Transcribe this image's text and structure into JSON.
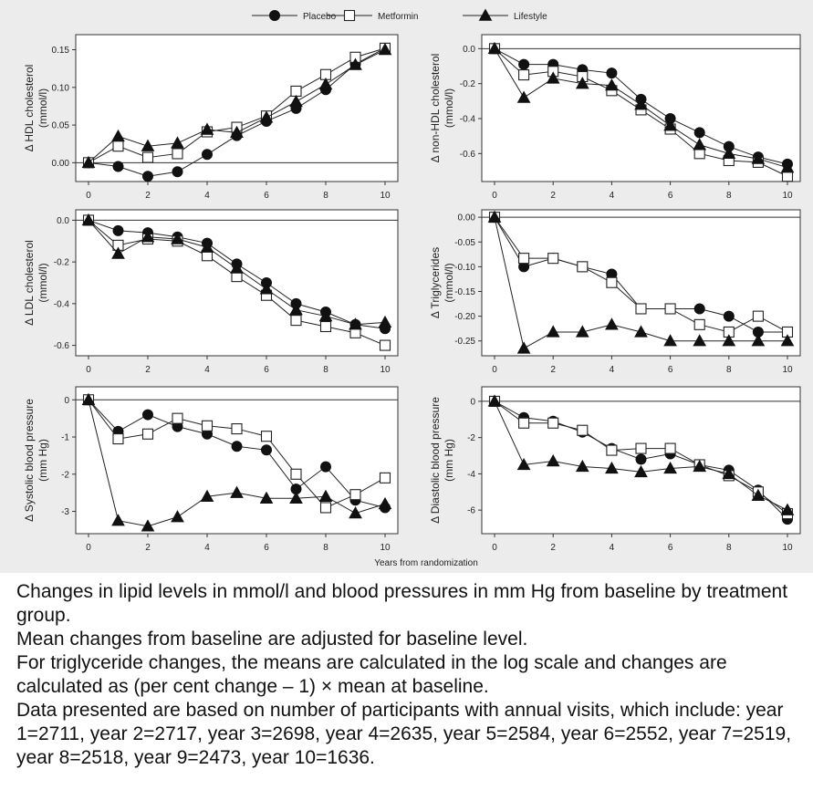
{
  "legend": {
    "entries": [
      {
        "name": "Placebo",
        "marker": "circle"
      },
      {
        "name": "Metformin",
        "marker": "square"
      },
      {
        "name": "Lifestyle",
        "marker": "triangle"
      }
    ]
  },
  "xlabel": "Years from randomization",
  "chart_data": [
    {
      "type": "line",
      "ylabel": [
        "Δ HDL cholesterol",
        "(mmol/l)"
      ],
      "x": [
        0,
        1,
        2,
        3,
        4,
        5,
        6,
        7,
        8,
        9,
        10
      ],
      "xticks": [
        0,
        2,
        4,
        6,
        8,
        10
      ],
      "yticks": [
        0.0,
        0.05,
        0.1,
        0.15
      ],
      "ytick_labels": [
        "0.00",
        "0.05",
        "0.10",
        "0.15"
      ],
      "ylim": [
        -0.025,
        0.17
      ],
      "series": [
        {
          "name": "Placebo",
          "marker": "circle",
          "values": [
            0.0,
            -0.005,
            -0.018,
            -0.012,
            0.011,
            0.036,
            0.055,
            0.072,
            0.097,
            0.131,
            0.152
          ]
        },
        {
          "name": "Metformin",
          "marker": "square",
          "values": [
            0.0,
            0.022,
            0.007,
            0.012,
            0.041,
            0.047,
            0.062,
            0.095,
            0.117,
            0.14,
            0.152
          ]
        },
        {
          "name": "Lifestyle",
          "marker": "triangle",
          "values": [
            0.0,
            0.035,
            0.022,
            0.026,
            0.044,
            0.04,
            0.06,
            0.081,
            0.104,
            0.13,
            0.15
          ]
        }
      ]
    },
    {
      "type": "line",
      "ylabel": [
        "Δ non-HDL cholesterol",
        "(mmol/l)"
      ],
      "x": [
        0,
        1,
        2,
        3,
        4,
        5,
        6,
        7,
        8,
        9,
        10
      ],
      "xticks": [
        0,
        2,
        4,
        6,
        8,
        10
      ],
      "yticks": [
        0.0,
        -0.2,
        -0.4,
        -0.6
      ],
      "ytick_labels": [
        "0.0",
        "-0.2",
        "-0.4",
        "-0.6"
      ],
      "ylim": [
        -0.76,
        0.08
      ],
      "series": [
        {
          "name": "Placebo",
          "marker": "circle",
          "values": [
            0.0,
            -0.09,
            -0.09,
            -0.12,
            -0.14,
            -0.29,
            -0.4,
            -0.48,
            -0.56,
            -0.62,
            -0.66
          ]
        },
        {
          "name": "Metformin",
          "marker": "square",
          "values": [
            0.0,
            -0.15,
            -0.13,
            -0.16,
            -0.24,
            -0.35,
            -0.46,
            -0.6,
            -0.64,
            -0.65,
            -0.73
          ]
        },
        {
          "name": "Lifestyle",
          "marker": "triangle",
          "values": [
            0.0,
            -0.28,
            -0.17,
            -0.2,
            -0.21,
            -0.32,
            -0.44,
            -0.55,
            -0.6,
            -0.63,
            -0.68
          ]
        }
      ]
    },
    {
      "type": "line",
      "ylabel": [
        "Δ LDL cholesterol",
        "(mmol/l)"
      ],
      "x": [
        0,
        1,
        2,
        3,
        4,
        5,
        6,
        7,
        8,
        9,
        10
      ],
      "xticks": [
        0,
        2,
        4,
        6,
        8,
        10
      ],
      "yticks": [
        0.0,
        -0.2,
        -0.4,
        -0.6
      ],
      "ytick_labels": [
        "0.0",
        "-0.2",
        "-0.4",
        "-0.6"
      ],
      "ylim": [
        -0.65,
        0.05
      ],
      "series": [
        {
          "name": "Placebo",
          "marker": "circle",
          "values": [
            0.0,
            -0.05,
            -0.06,
            -0.08,
            -0.11,
            -0.21,
            -0.3,
            -0.4,
            -0.44,
            -0.5,
            -0.52
          ]
        },
        {
          "name": "Metformin",
          "marker": "square",
          "values": [
            0.0,
            -0.12,
            -0.09,
            -0.1,
            -0.17,
            -0.27,
            -0.36,
            -0.48,
            -0.51,
            -0.54,
            -0.6
          ]
        },
        {
          "name": "Lifestyle",
          "marker": "triangle",
          "values": [
            0.0,
            -0.16,
            -0.08,
            -0.09,
            -0.13,
            -0.23,
            -0.33,
            -0.43,
            -0.46,
            -0.5,
            -0.49
          ]
        }
      ]
    },
    {
      "type": "line",
      "ylabel": [
        "Δ Triglycerides",
        "(mmol/l)"
      ],
      "x": [
        0,
        1,
        2,
        3,
        4,
        5,
        6,
        7,
        8,
        9,
        10
      ],
      "xticks": [
        0,
        2,
        4,
        6,
        8,
        10
      ],
      "yticks": [
        0.0,
        -0.05,
        -0.1,
        -0.15,
        -0.2,
        -0.25
      ],
      "ytick_labels": [
        "0.00",
        "-0.05",
        "-0.10",
        "-0.15",
        "-0.20",
        "-0.25"
      ],
      "ylim": [
        -0.28,
        0.015
      ],
      "series": [
        {
          "name": "Placebo",
          "marker": "circle",
          "values": [
            0.0,
            -0.1,
            -0.083,
            -0.1,
            -0.115,
            -0.185,
            -0.185,
            -0.185,
            -0.2,
            -0.232,
            -0.232
          ]
        },
        {
          "name": "Metformin",
          "marker": "square",
          "values": [
            0.0,
            -0.083,
            -0.083,
            -0.1,
            -0.132,
            -0.185,
            -0.185,
            -0.217,
            -0.232,
            -0.2,
            -0.232
          ]
        },
        {
          "name": "Lifestyle",
          "marker": "triangle",
          "values": [
            0.0,
            -0.265,
            -0.232,
            -0.232,
            -0.217,
            -0.232,
            -0.25,
            -0.25,
            -0.25,
            -0.25,
            -0.25
          ]
        }
      ]
    },
    {
      "type": "line",
      "ylabel": [
        "Δ Systolic blood pressure",
        "(mm Hg)"
      ],
      "x": [
        0,
        1,
        2,
        3,
        4,
        5,
        6,
        7,
        8,
        9,
        10
      ],
      "xticks": [
        0,
        2,
        4,
        6,
        8,
        10
      ],
      "yticks": [
        0,
        -1,
        -2,
        -3
      ],
      "ytick_labels": [
        "0",
        "-1",
        "-2",
        "-3"
      ],
      "ylim": [
        -3.6,
        0.35
      ],
      "series": [
        {
          "name": "Placebo",
          "marker": "circle",
          "values": [
            0.0,
            -0.85,
            -0.4,
            -0.72,
            -0.92,
            -1.25,
            -1.35,
            -2.4,
            -1.8,
            -2.7,
            -2.9
          ]
        },
        {
          "name": "Metformin",
          "marker": "square",
          "values": [
            0.0,
            -1.05,
            -0.92,
            -0.5,
            -0.7,
            -0.78,
            -0.98,
            -2.0,
            -2.9,
            -2.55,
            -2.1
          ]
        },
        {
          "name": "Lifestyle",
          "marker": "triangle",
          "values": [
            0.0,
            -3.25,
            -3.4,
            -3.15,
            -2.6,
            -2.5,
            -2.65,
            -2.65,
            -2.6,
            -3.05,
            -2.8
          ]
        }
      ]
    },
    {
      "type": "line",
      "ylabel": [
        "Δ Diastolic blood pressure",
        "(mm Hg)"
      ],
      "x": [
        0,
        1,
        2,
        3,
        4,
        5,
        6,
        7,
        8,
        9,
        10
      ],
      "xticks": [
        0,
        2,
        4,
        6,
        8,
        10
      ],
      "yticks": [
        0,
        -2,
        -4,
        -6
      ],
      "ytick_labels": [
        "0",
        "-2",
        "-4",
        "-6"
      ],
      "ylim": [
        -7.3,
        0.8
      ],
      "series": [
        {
          "name": "Placebo",
          "marker": "circle",
          "values": [
            0.0,
            -0.9,
            -1.1,
            -1.7,
            -2.6,
            -3.2,
            -2.9,
            -3.5,
            -3.8,
            -4.9,
            -6.5
          ]
        },
        {
          "name": "Metformin",
          "marker": "square",
          "values": [
            0.0,
            -1.2,
            -1.2,
            -1.6,
            -2.7,
            -2.6,
            -2.6,
            -3.5,
            -4.1,
            -5.0,
            -6.2
          ]
        },
        {
          "name": "Lifestyle",
          "marker": "triangle",
          "values": [
            0.0,
            -3.5,
            -3.3,
            -3.6,
            -3.7,
            -3.9,
            -3.7,
            -3.6,
            -4.0,
            -5.2,
            -6.0
          ]
        }
      ]
    }
  ],
  "caption": [
    "Changes in lipid levels in mmol/l and blood pressures in mm Hg from baseline by treatment group.",
    "Mean changes from baseline are adjusted for baseline level.",
    "For triglyceride changes, the means are calculated in the log scale and changes are calculated as (per cent change – 1) × mean at baseline.",
    "Data presented are based on number of participants with annual visits, which include: year 1=2711, year 2=2717, year 3=2698, year 4=2635, year 5=2584, year 6=2552, year 7=2519, year 8=2518, year 9=2473, year 10=1636."
  ]
}
